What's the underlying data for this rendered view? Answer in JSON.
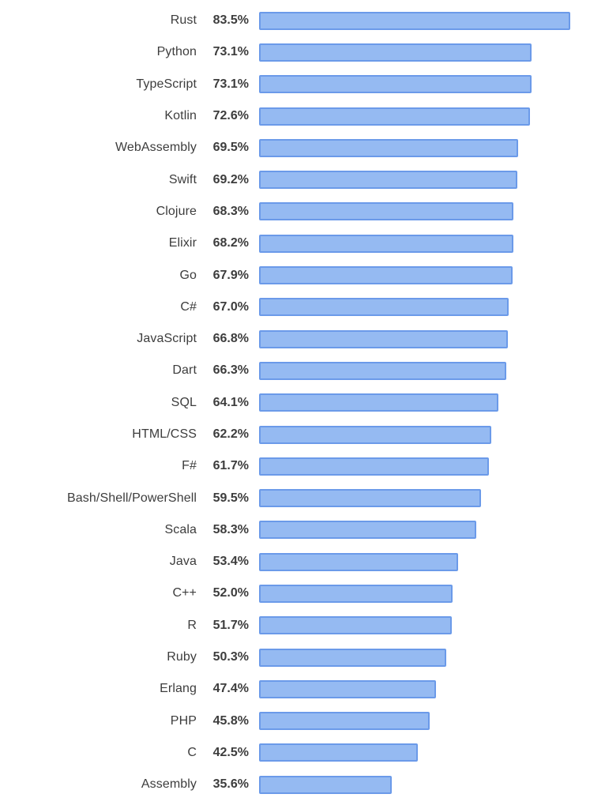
{
  "chart_data": {
    "type": "bar",
    "orientation": "horizontal",
    "title": "",
    "xlabel": "",
    "ylabel": "",
    "xlim": [
      0,
      100
    ],
    "grid": false,
    "legend": false,
    "value_suffix": "%",
    "categories": [
      "Rust",
      "Python",
      "TypeScript",
      "Kotlin",
      "WebAssembly",
      "Swift",
      "Clojure",
      "Elixir",
      "Go",
      "C#",
      "JavaScript",
      "Dart",
      "SQL",
      "HTML/CSS",
      "F#",
      "Bash/Shell/PowerShell",
      "Scala",
      "Java",
      "C++",
      "R",
      "Ruby",
      "Erlang",
      "PHP",
      "C",
      "Assembly"
    ],
    "values": [
      83.5,
      73.1,
      73.1,
      72.6,
      69.5,
      69.2,
      68.3,
      68.2,
      67.9,
      67.0,
      66.8,
      66.3,
      64.1,
      62.2,
      61.7,
      59.5,
      58.3,
      53.4,
      52.0,
      51.7,
      50.3,
      47.4,
      45.8,
      42.5,
      35.6
    ],
    "value_labels": [
      "83.5%",
      "73.1%",
      "73.1%",
      "72.6%",
      "69.5%",
      "69.2%",
      "68.3%",
      "68.2%",
      "67.9%",
      "67.0%",
      "66.8%",
      "66.3%",
      "64.1%",
      "62.2%",
      "61.7%",
      "59.5%",
      "58.3%",
      "53.4%",
      "52.0%",
      "51.7%",
      "50.3%",
      "47.4%",
      "45.8%",
      "42.5%",
      "35.6%"
    ],
    "colors": {
      "bar_fill": "#95baf2",
      "bar_border": "#6b9ae9",
      "label_text": "#3d3d3d",
      "background": "#ffffff"
    }
  }
}
